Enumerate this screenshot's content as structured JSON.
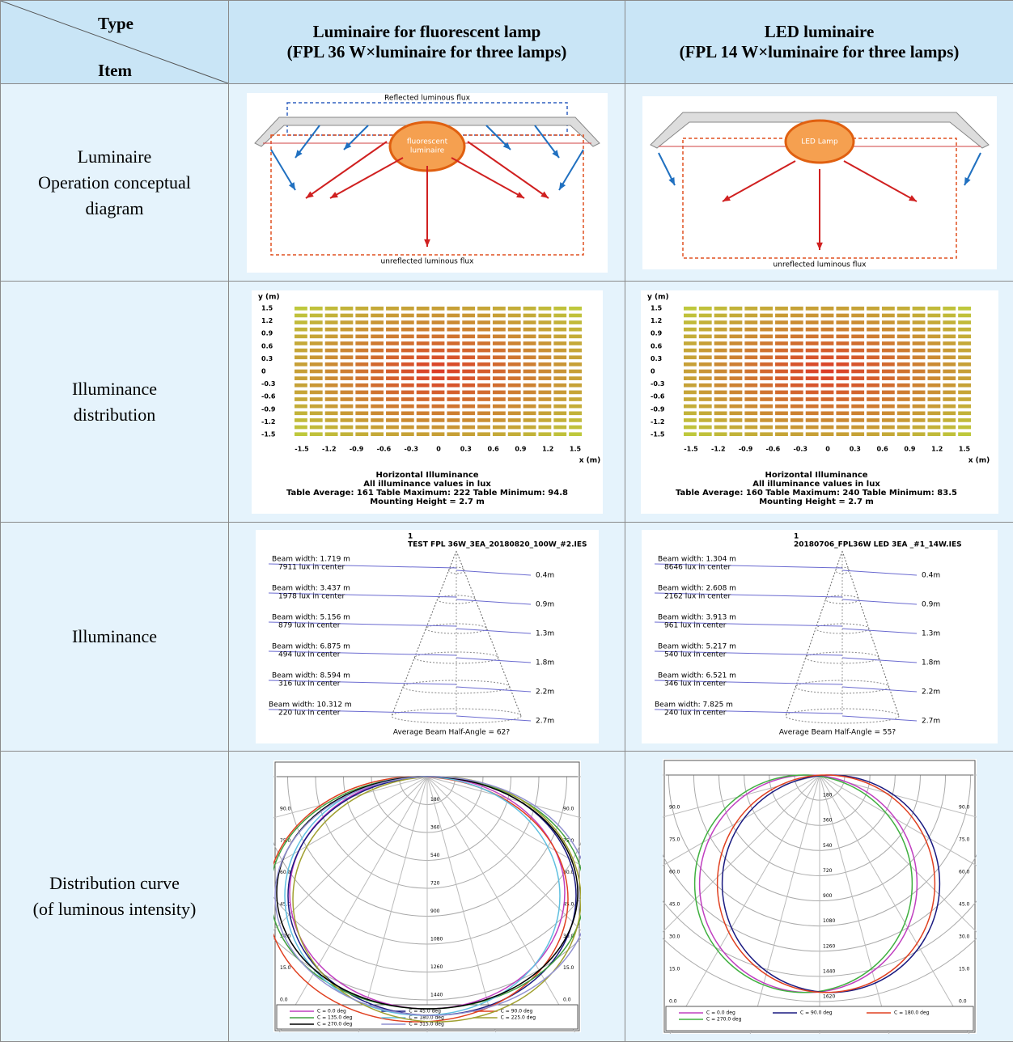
{
  "table": {
    "header": {
      "type": "Type",
      "item": "Item",
      "columns": [
        [
          "Luminaire for fluorescent lamp",
          "(FPL 36 W×luminaire for three lamps)"
        ],
        [
          "LED luminaire",
          "(FPL 14 W×luminaire for three lamps)"
        ]
      ]
    },
    "rows": [
      {
        "label": [
          "Luminaire",
          "Operation conceptual",
          "diagram"
        ]
      },
      {
        "label": [
          "Illuminance",
          "distribution"
        ]
      },
      {
        "label": [
          "Illuminance"
        ]
      },
      {
        "label": [
          "Distribution curve",
          "(of luminous intensity)"
        ]
      }
    ]
  },
  "figures": {
    "concept": [
      {
        "top": "Reflected luminous flux",
        "lamp": [
          "fluorescent",
          "luminaire"
        ],
        "bottom": "unreflected luminous flux"
      },
      {
        "lamp": [
          "LED Lamp"
        ],
        "bottom": "unreflected luminous flux"
      }
    ],
    "distribution": [
      {
        "y_label": "y (m)",
        "x_label": "x (m)",
        "yticks": [
          1.5,
          1.2,
          0.9,
          0.6,
          0.3,
          0.0,
          -0.3,
          -0.6,
          -0.9,
          -1.2,
          -1.5
        ],
        "xticks": [
          -1.5,
          -1.2,
          -0.9,
          -0.6,
          -0.3,
          0.0,
          0.3,
          0.6,
          0.9,
          1.2,
          1.5
        ],
        "caption": [
          "Horizontal Illuminance",
          "All illuminance values in lux",
          "Table Average: 161   Table Maximum: 222   Table Minimum: 94.8",
          "Mounting Height = 2.7 m"
        ]
      },
      {
        "y_label": "y (m)",
        "x_label": "x (m)",
        "yticks": [
          1.5,
          1.2,
          0.9,
          0.6,
          0.3,
          0.0,
          -0.3,
          -0.6,
          -0.9,
          -1.2,
          -1.5
        ],
        "xticks": [
          -1.5,
          -1.2,
          -0.9,
          -0.6,
          -0.3,
          0.0,
          0.3,
          0.6,
          0.9,
          1.2,
          1.5
        ],
        "caption": [
          "Horizontal Illuminance",
          "All illuminance values in lux",
          "Table Average: 160   Table Maximum: 240   Table Minimum: 83.5",
          "Mounting Height = 2.7 m"
        ]
      }
    ],
    "cone": [
      {
        "index": "1",
        "file": "TEST FPL 36W_3EA_20180820_100W_#2.IES",
        "beams": [
          [
            "Beam width: 1.719 m",
            "7911 lux in center"
          ],
          [
            "Beam width: 3.437 m",
            "1978 lux in center"
          ],
          [
            "Beam width: 5.156 m",
            "879 lux in center"
          ],
          [
            "Beam width: 6.875 m",
            "494 lux in center"
          ],
          [
            "Beam width: 8.594 m",
            "316 lux in center"
          ],
          [
            "Beam width: 10.312 m",
            "220 lux in center"
          ]
        ],
        "distances": [
          "0.4m",
          "0.9m",
          "1.3m",
          "1.8m",
          "2.2m",
          "2.7m"
        ],
        "footer": "Average Beam Half-Angle = 62?"
      },
      {
        "index": "1",
        "file": "20180706_FPL36W LED 3EA _#1_14W.IES",
        "beams": [
          [
            "Beam width: 1.304 m",
            "8646 lux in center"
          ],
          [
            "Beam width: 2.608 m",
            "2162 lux in center"
          ],
          [
            "Beam width: 3.913 m",
            "961 lux in center"
          ],
          [
            "Beam width: 5.217 m",
            "540 lux in center"
          ],
          [
            "Beam width: 6.521 m",
            "346 lux in center"
          ],
          [
            "Beam width: 7.825 m",
            "240 lux in center"
          ]
        ],
        "distances": [
          "0.4m",
          "0.9m",
          "1.3m",
          "1.8m",
          "2.2m",
          "2.7m"
        ],
        "footer": "Average Beam Half-Angle = 55?"
      }
    ],
    "polar": [
      {
        "radial": [
          180,
          360,
          540,
          720,
          900,
          1080,
          1260,
          1440
        ],
        "angles": [
          "90.0",
          "75.0",
          "60.0",
          "45.0",
          "30.0",
          "15.0",
          "0.0"
        ],
        "legend": [
          {
            "name": "C = 0.0 deg",
            "color": "#c040c0"
          },
          {
            "name": "C = 45.0 deg",
            "color": "#1a1a80"
          },
          {
            "name": "C = 90.0 deg",
            "color": "#e04020"
          },
          {
            "name": "C = 135.0 deg",
            "color": "#40a040"
          },
          {
            "name": "C = 180.0 deg",
            "color": "#60c0e0"
          },
          {
            "name": "C = 225.0 deg",
            "color": "#a0a030"
          },
          {
            "name": "C = 270.0 deg",
            "color": "#000000"
          },
          {
            "name": "C = 315.0 deg",
            "color": "#9090d0"
          }
        ]
      },
      {
        "radial": [
          180,
          360,
          540,
          720,
          900,
          1080,
          1260,
          1440,
          1620
        ],
        "angles": [
          "90.0",
          "75.0",
          "60.0",
          "45.0",
          "30.0",
          "15.0",
          "0.0"
        ],
        "legend": [
          {
            "name": "C = 0.0 deg",
            "color": "#c040c0"
          },
          {
            "name": "C = 270.0 deg",
            "color": "#40b040"
          },
          {
            "name": "C = 90.0 deg",
            "color": "#1a1a80"
          },
          {
            "name": "C = 180.0 deg",
            "color": "#e04020"
          }
        ]
      }
    ]
  }
}
